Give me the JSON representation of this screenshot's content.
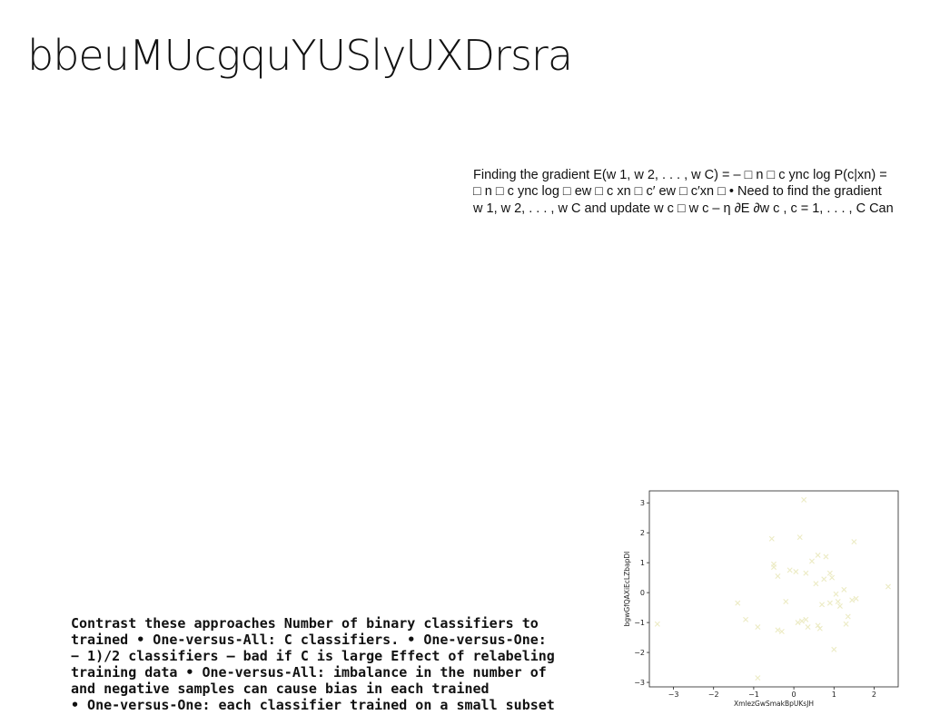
{
  "title": "bbeuMUcgquYUSlyUXDrsra",
  "text_block": {
    "lines": [
      "Finding the gradient E(w 1, w 2, . . . , w C) = – □ n □ c ync log P(c|xn) =",
      "□ n □ c ync log □ ew □ c xn □ c′ ew □ c′xn □ • Need to find the gradient",
      "w 1, w 2, . . . , w C and update w c □ w c – η ∂E ∂w c , c = 1, . . . , C Can"
    ]
  },
  "bottom_text": {
    "lines": [
      "Contrast these approaches Number of binary classifiers to",
      "trained • One-versus-All: C classifiers. • One-versus-One:",
      "− 1)/2 classifiers – bad if C is large Effect of relabeling and",
      "training data • One-versus-All: imbalance in the number of",
      "and negative samples can cause bias in each trained",
      "• One-versus-One: each classifier trained on a small subset"
    ]
  },
  "chart_data": {
    "type": "scatter",
    "xlabel": "XmlezGwSmakBpUKsJH",
    "ylabel": "bgwGfQAXiEcLZbapDI",
    "xlim": [
      -3.6,
      2.6
    ],
    "ylim": [
      -3.15,
      3.4
    ],
    "xticks": [
      "−3",
      "−2",
      "−1",
      "0",
      "1",
      "2"
    ],
    "yticks": [
      "3",
      "2",
      "1",
      "0",
      "−1",
      "−2",
      "−3"
    ],
    "marker": "x",
    "marker_color": "#ecebc4",
    "points": [
      {
        "x": -3.4,
        "y": -1.05
      },
      {
        "x": -1.4,
        "y": -0.35
      },
      {
        "x": -1.2,
        "y": -0.9
      },
      {
        "x": -0.9,
        "y": -1.15
      },
      {
        "x": -0.9,
        "y": -2.85
      },
      {
        "x": -0.55,
        "y": 1.8
      },
      {
        "x": -0.5,
        "y": 0.95
      },
      {
        "x": -0.5,
        "y": 0.85
      },
      {
        "x": -0.4,
        "y": 0.55
      },
      {
        "x": -0.4,
        "y": -1.25
      },
      {
        "x": -0.3,
        "y": -1.3
      },
      {
        "x": -0.2,
        "y": -0.3
      },
      {
        "x": -0.1,
        "y": 0.75
      },
      {
        "x": 0.05,
        "y": 0.7
      },
      {
        "x": 0.1,
        "y": -1.0
      },
      {
        "x": 0.15,
        "y": 1.85
      },
      {
        "x": 0.2,
        "y": -0.95
      },
      {
        "x": 0.25,
        "y": 3.1
      },
      {
        "x": 0.3,
        "y": -0.9
      },
      {
        "x": 0.3,
        "y": 0.65
      },
      {
        "x": 0.35,
        "y": -1.15
      },
      {
        "x": 0.45,
        "y": 1.05
      },
      {
        "x": 0.55,
        "y": 0.3
      },
      {
        "x": 0.6,
        "y": 1.25
      },
      {
        "x": 0.6,
        "y": -1.1
      },
      {
        "x": 0.65,
        "y": -1.2
      },
      {
        "x": 0.7,
        "y": -0.4
      },
      {
        "x": 0.75,
        "y": 0.45
      },
      {
        "x": 0.8,
        "y": 1.2
      },
      {
        "x": 0.9,
        "y": 0.65
      },
      {
        "x": 0.9,
        "y": -0.35
      },
      {
        "x": 0.95,
        "y": 0.5
      },
      {
        "x": 1.0,
        "y": -1.9
      },
      {
        "x": 1.05,
        "y": -0.05
      },
      {
        "x": 1.1,
        "y": -0.3
      },
      {
        "x": 1.15,
        "y": -0.45
      },
      {
        "x": 1.25,
        "y": 0.1
      },
      {
        "x": 1.3,
        "y": -1.05
      },
      {
        "x": 1.35,
        "y": -0.8
      },
      {
        "x": 1.45,
        "y": -0.25
      },
      {
        "x": 1.55,
        "y": -0.2
      },
      {
        "x": 1.5,
        "y": 1.7
      },
      {
        "x": 2.35,
        "y": 0.2
      }
    ]
  }
}
